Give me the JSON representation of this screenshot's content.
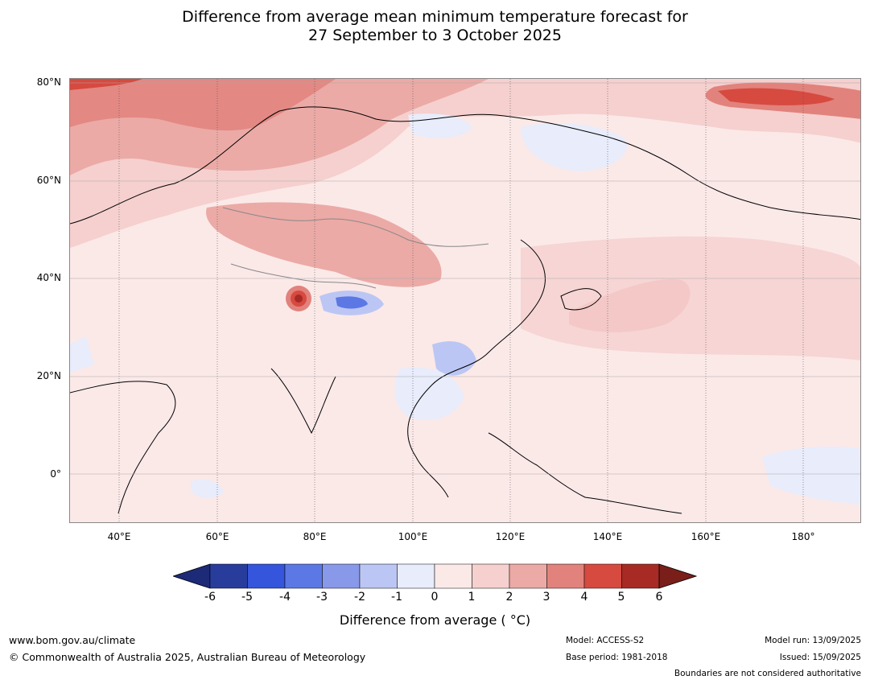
{
  "title": {
    "line1": "Difference from average mean minimum temperature forecast for",
    "line2": "27 September to 3 October 2025"
  },
  "map": {
    "lat_labels": [
      "80°N",
      "60°N",
      "40°N",
      "20°N",
      "0°"
    ],
    "lon_labels": [
      "40°E",
      "60°E",
      "80°E",
      "100°E",
      "120°E",
      "140°E",
      "160°E",
      "180°"
    ],
    "extent": {
      "lon": [
        30,
        192
      ],
      "lat": [
        -10,
        81
      ]
    }
  },
  "legend": {
    "title": "Difference from average ( °C)",
    "ticks": [
      "-6",
      "-5",
      "-4",
      "-3",
      "-2",
      "-1",
      "0",
      "1",
      "2",
      "3",
      "4",
      "5",
      "6"
    ],
    "colors": [
      "#1c2a78",
      "#283c9c",
      "#3455dc",
      "#5c78e4",
      "#8899ea",
      "#bcc6f4",
      "#e8ecfb",
      "#fbe9e8",
      "#f5d0ce",
      "#ebaaa6",
      "#e2827c",
      "#d64a40",
      "#a82a24",
      "#7a1e1a"
    ]
  },
  "footer": {
    "website": "www.bom.gov.au/climate",
    "copyright": "© Commonwealth of Australia 2025, Australian Bureau of Meteorology",
    "model": "Model: ACCESS-S2",
    "base_period": "Base period: 1981-2018",
    "model_run": "Model run: 13/09/2025",
    "issued": "Issued: 15/09/2025",
    "disclaimer": "Boundaries are not considered authoritative"
  }
}
